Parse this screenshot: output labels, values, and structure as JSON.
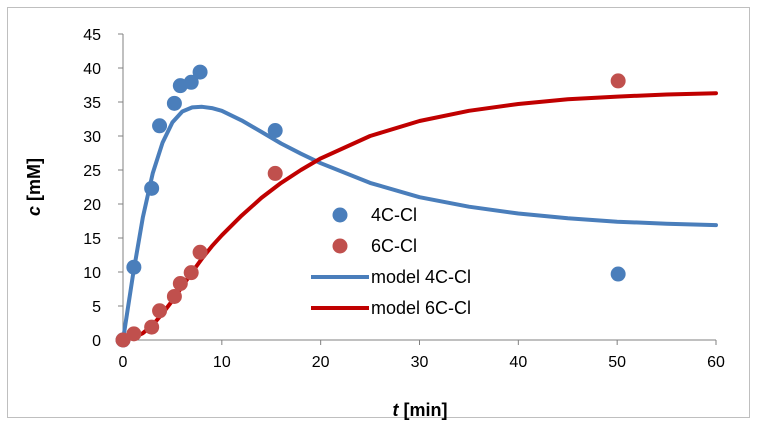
{
  "chart_data": {
    "type": "scatter",
    "title": "",
    "xlabel": {
      "var": "t",
      "unit": "[min]"
    },
    "ylabel": {
      "var": "c",
      "unit": "[mM]"
    },
    "xlim": [
      0,
      60
    ],
    "ylim": [
      0,
      45
    ],
    "xticks": [
      0,
      10,
      20,
      30,
      40,
      50,
      60
    ],
    "yticks": [
      0,
      5,
      10,
      15,
      20,
      25,
      30,
      35,
      40,
      45
    ],
    "grid": false,
    "legend_position": "center",
    "series": [
      {
        "name": "4C-Cl",
        "kind": "points",
        "color": "#4a7ebb",
        "x": [
          0,
          1.1,
          2.9,
          3.7,
          5.2,
          5.8,
          6.9,
          7.8,
          15.4,
          50.1
        ],
        "y": [
          0,
          10.7,
          22.3,
          31.5,
          34.8,
          37.4,
          37.9,
          39.4,
          30.8,
          9.7
        ]
      },
      {
        "name": "6C-Cl",
        "kind": "points",
        "color": "#c0504d",
        "x": [
          0,
          1.1,
          2.9,
          3.7,
          5.2,
          5.8,
          6.9,
          7.8,
          15.4,
          50.1
        ],
        "y": [
          0,
          0.9,
          1.9,
          4.3,
          6.4,
          8.3,
          9.9,
          12.9,
          24.5,
          38.1
        ]
      },
      {
        "name": "model 4C-Cl",
        "kind": "line",
        "color": "#4a7ebb",
        "x": [
          0,
          1,
          2,
          3,
          4,
          5,
          6,
          7,
          8,
          9,
          10,
          12,
          14,
          16,
          18,
          20,
          25,
          30,
          35,
          40,
          45,
          50,
          55,
          60
        ],
        "y": [
          0,
          9.5,
          18,
          24.5,
          29,
          32,
          33.6,
          34.2,
          34.3,
          34.1,
          33.7,
          32.3,
          30.6,
          28.9,
          27.4,
          26.0,
          23.1,
          21.0,
          19.6,
          18.6,
          17.9,
          17.4,
          17.1,
          16.9
        ]
      },
      {
        "name": "model 6C-Cl",
        "kind": "line",
        "color": "#c00000",
        "x": [
          0,
          1,
          2,
          3,
          4,
          5,
          6,
          7,
          8,
          9,
          10,
          12,
          14,
          16,
          18,
          20,
          25,
          30,
          35,
          40,
          45,
          50,
          55,
          60
        ],
        "y": [
          0,
          0.3,
          1.0,
          2.2,
          3.9,
          5.8,
          7.9,
          10.0,
          12.0,
          13.8,
          15.4,
          18.3,
          20.9,
          23.1,
          25.0,
          26.7,
          30.0,
          32.2,
          33.7,
          34.7,
          35.4,
          35.8,
          36.1,
          36.3
        ]
      }
    ]
  }
}
